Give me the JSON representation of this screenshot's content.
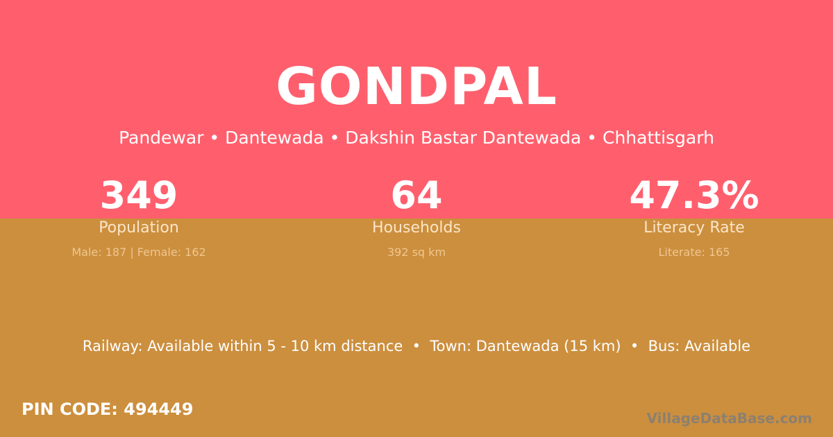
{
  "colors": {
    "top": "#ff5f6d",
    "bottom": "#cc8f3e"
  },
  "title": "GONDPAL",
  "subtitle": "Pandewar • Dantewada • Dakshin Bastar Dantewada • Chhattisgarh",
  "stats": [
    {
      "value": "349",
      "label": "Population",
      "detail": "Male: 187 | Female: 162"
    },
    {
      "value": "64",
      "label": "Households",
      "detail": "392 sq km"
    },
    {
      "value": "47.3%",
      "label": "Literacy Rate",
      "detail": "Literate: 165"
    }
  ],
  "info": "Railway: Available within 5 - 10 km distance  •  Town: Dantewada (15 km)  •  Bus: Available",
  "pin": "PIN CODE: 494449",
  "watermark": "VillageDataBase.com"
}
